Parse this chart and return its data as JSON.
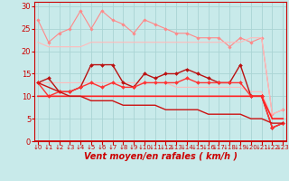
{
  "bg_color": "#c8eaea",
  "grid_color": "#aad4d4",
  "x": [
    0,
    1,
    2,
    3,
    4,
    5,
    6,
    7,
    8,
    9,
    10,
    11,
    12,
    13,
    14,
    15,
    16,
    17,
    18,
    19,
    20,
    21,
    22,
    23
  ],
  "series": [
    {
      "name": "line1_spiky",
      "color": "#ff8888",
      "lw": 0.8,
      "marker": "D",
      "ms": 1.8,
      "data": [
        27,
        22,
        24,
        25,
        29,
        25,
        29,
        27,
        26,
        24,
        27,
        26,
        25,
        24,
        24,
        23,
        23,
        23,
        21,
        23,
        22,
        23,
        6,
        7
      ]
    },
    {
      "name": "line2_upper_band",
      "color": "#ffbbbb",
      "lw": 0.8,
      "marker": null,
      "ms": 0,
      "data": [
        22,
        21,
        21,
        21,
        21,
        22,
        22,
        22,
        22,
        22,
        22,
        22,
        22,
        22,
        22,
        22,
        22,
        22,
        22,
        22,
        23,
        23,
        6,
        7
      ]
    },
    {
      "name": "line3_lower_band",
      "color": "#ffbbbb",
      "lw": 0.8,
      "marker": null,
      "ms": 0,
      "data": [
        13,
        13,
        13,
        13,
        13,
        13,
        13,
        13,
        13,
        13,
        13,
        13,
        13,
        12,
        12,
        12,
        12,
        12,
        12,
        12,
        11,
        11,
        5,
        5
      ]
    },
    {
      "name": "line4_dark_marker",
      "color": "#bb1111",
      "lw": 1.0,
      "marker": "D",
      "ms": 2.0,
      "data": [
        13,
        14,
        11,
        11,
        12,
        17,
        17,
        17,
        13,
        12,
        15,
        14,
        15,
        15,
        16,
        15,
        14,
        13,
        13,
        17,
        10,
        10,
        3,
        4
      ]
    },
    {
      "name": "line5_mid_marker",
      "color": "#ff3333",
      "lw": 1.0,
      "marker": "D",
      "ms": 2.0,
      "data": [
        13,
        10,
        11,
        11,
        12,
        13,
        12,
        13,
        12,
        12,
        13,
        13,
        13,
        13,
        14,
        13,
        13,
        13,
        13,
        13,
        10,
        10,
        3,
        4
      ]
    },
    {
      "name": "line6_flat_red",
      "color": "#ff2222",
      "lw": 1.2,
      "marker": null,
      "ms": 0,
      "data": [
        10,
        10,
        10,
        10,
        10,
        10,
        10,
        10,
        10,
        10,
        10,
        10,
        10,
        10,
        10,
        10,
        10,
        10,
        10,
        10,
        10,
        10,
        5,
        5
      ]
    },
    {
      "name": "line7_declining",
      "color": "#cc1111",
      "lw": 1.0,
      "marker": null,
      "ms": 0,
      "data": [
        13,
        12,
        11,
        10,
        10,
        9,
        9,
        9,
        8,
        8,
        8,
        8,
        7,
        7,
        7,
        7,
        6,
        6,
        6,
        6,
        5,
        5,
        4,
        4
      ]
    }
  ],
  "ylim": [
    0,
    31
  ],
  "xlim": [
    -0.3,
    23.3
  ],
  "yticks": [
    0,
    5,
    10,
    15,
    20,
    25,
    30
  ],
  "xticks": [
    0,
    1,
    2,
    3,
    4,
    5,
    6,
    7,
    8,
    9,
    10,
    11,
    12,
    13,
    14,
    15,
    16,
    17,
    18,
    19,
    20,
    21,
    22,
    23
  ],
  "tick_color": "#cc0000",
  "axis_color": "#cc0000",
  "xlabel": "Vent moyen/en rafales ( km/h )",
  "xlabel_color": "#cc0000",
  "xlabel_fontsize": 7,
  "ytick_fontsize": 6,
  "xtick_fontsize": 5
}
